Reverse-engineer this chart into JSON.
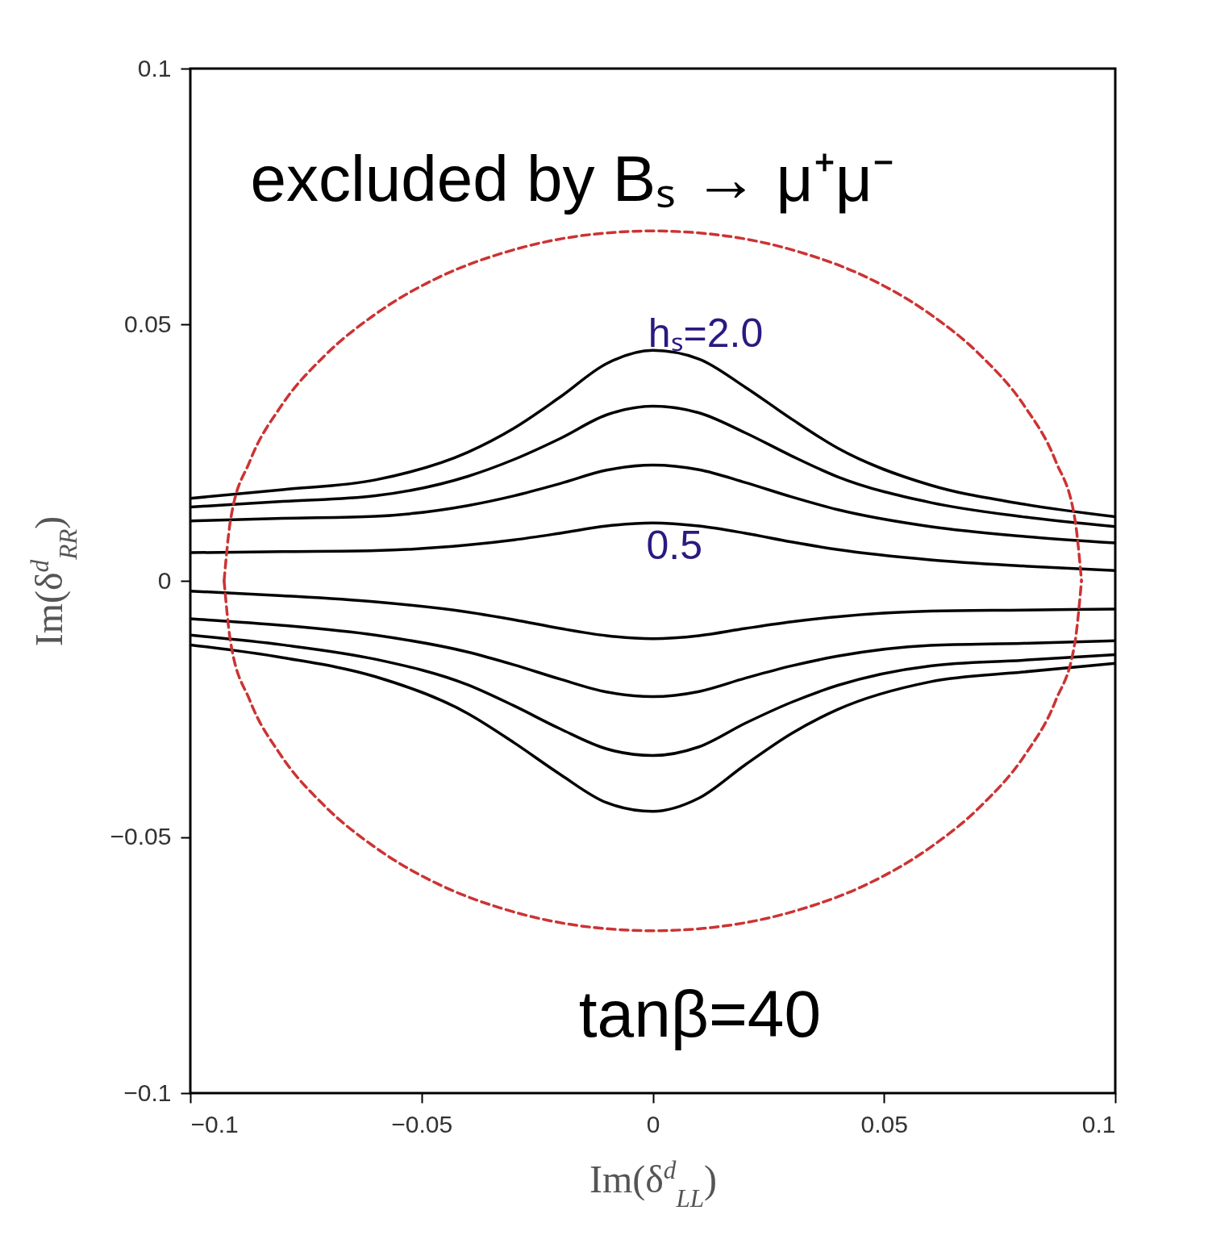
{
  "chart_data": {
    "type": "line",
    "xlabel": "Im(δ$^{d}$$_{LL}$)",
    "ylabel": "Im(δ$^{d}$$_{RR}$)",
    "x": [
      -0.1,
      -0.08,
      -0.06,
      -0.04,
      -0.03,
      -0.02,
      -0.01,
      0,
      0.01,
      0.02,
      0.03,
      0.04,
      0.06,
      0.08,
      0.1
    ],
    "series": [
      {
        "color": "#000000",
        "values": [
          0.0161,
          0.0178,
          0.0197,
          0.0251,
          0.0298,
          0.0359,
          0.0424,
          0.045,
          0.0433,
          0.0378,
          0.0316,
          0.0259,
          0.0187,
          0.015,
          0.0125
        ]
      },
      {
        "color": "#000000",
        "values": [
          0.0144,
          0.0155,
          0.0166,
          0.0204,
          0.0237,
          0.0278,
          0.0324,
          0.0341,
          0.0328,
          0.0289,
          0.0244,
          0.0203,
          0.0153,
          0.0125,
          0.0106
        ]
      },
      {
        "color": "#000000",
        "values": [
          0.0117,
          0.0122,
          0.0126,
          0.0147,
          0.0166,
          0.019,
          0.0216,
          0.0226,
          0.0217,
          0.0192,
          0.0164,
          0.0139,
          0.0106,
          0.0087,
          0.0074
        ]
      },
      {
        "color": "#000000",
        "values": [
          0.0055,
          0.0057,
          0.0059,
          0.007,
          0.008,
          0.0093,
          0.0107,
          0.0113,
          0.0107,
          0.0093,
          0.0076,
          0.0061,
          0.0041,
          0.0029,
          0.002
        ]
      },
      {
        "color": "#000000",
        "values": [
          -0.002,
          -0.0029,
          -0.0041,
          -0.0061,
          -0.0076,
          -0.0093,
          -0.0107,
          -0.0113,
          -0.0107,
          -0.0093,
          -0.008,
          -0.007,
          -0.0059,
          -0.0057,
          -0.0055
        ]
      },
      {
        "color": "#000000",
        "values": [
          -0.0074,
          -0.0087,
          -0.0106,
          -0.0139,
          -0.0164,
          -0.0192,
          -0.0217,
          -0.0226,
          -0.0216,
          -0.019,
          -0.0166,
          -0.0147,
          -0.0126,
          -0.0122,
          -0.0117
        ]
      },
      {
        "color": "#000000",
        "values": [
          -0.0106,
          -0.0125,
          -0.0153,
          -0.0203,
          -0.0244,
          -0.0289,
          -0.0328,
          -0.0341,
          -0.0324,
          -0.0278,
          -0.0237,
          -0.0204,
          -0.0166,
          -0.0155,
          -0.0144
        ]
      },
      {
        "color": "#000000",
        "values": [
          -0.0125,
          -0.015,
          -0.0187,
          -0.0259,
          -0.0316,
          -0.0378,
          -0.0433,
          -0.045,
          -0.0424,
          -0.0359,
          -0.0298,
          -0.0251,
          -0.0197,
          -0.0178,
          -0.0161
        ]
      },
      {
        "color": "#cc3333",
        "line_style": "dashed",
        "x": [
          -0.0927,
          -0.0913,
          -0.0871,
          -0.0803,
          -0.071,
          -0.0596,
          -0.0464,
          -0.0317,
          -0.0161,
          0,
          0.0161,
          0.0317,
          0.0464,
          0.0596,
          0.071,
          0.0803,
          0.0871,
          0.0913,
          0.0927
        ],
        "values": [
          0,
          0.0119,
          0.0234,
          0.0342,
          0.0439,
          0.0523,
          0.0592,
          0.0642,
          0.0673,
          0.0683,
          0.0673,
          0.0642,
          0.0592,
          0.0523,
          0.0439,
          0.0342,
          0.0234,
          0.0119,
          0
        ]
      },
      {
        "color": "#cc3333",
        "line_style": "dashed",
        "x": [
          -0.0927,
          -0.0913,
          -0.0871,
          -0.0803,
          -0.071,
          -0.0596,
          -0.0464,
          -0.0317,
          -0.0161,
          0,
          0.0161,
          0.0317,
          0.0464,
          0.0596,
          0.071,
          0.0803,
          0.0871,
          0.0913,
          0.0927
        ],
        "values": [
          0,
          -0.0119,
          -0.0234,
          -0.0342,
          -0.0439,
          -0.0523,
          -0.0592,
          -0.0642,
          -0.0673,
          -0.0683,
          -0.0673,
          -0.0642,
          -0.0592,
          -0.0523,
          -0.0439,
          -0.0342,
          -0.0234,
          -0.0119,
          0
        ]
      }
    ],
    "annotations": [
      "excluded by  Bₛ → μ⁺μ⁻",
      "hₛ=2.0",
      "0.5",
      "tanβ=40"
    ],
    "xlim": [
      -0.1,
      0.1
    ],
    "ylim": [
      -0.1,
      0.1
    ],
    "xticks": [
      -0.1,
      -0.05,
      0,
      0.05,
      0.1
    ],
    "yticks": [
      -0.1,
      -0.05,
      0,
      0.05,
      0.1
    ],
    "grid": false
  }
}
